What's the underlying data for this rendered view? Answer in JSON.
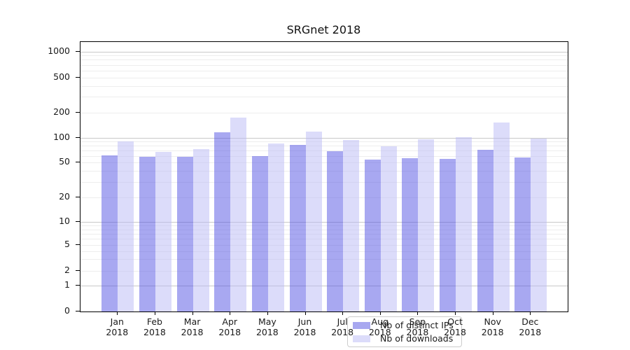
{
  "chart_data": {
    "type": "bar",
    "title": "SRGnet 2018",
    "categories": [
      "Jan",
      "Feb",
      "Mar",
      "Apr",
      "May",
      "Jun",
      "Jul",
      "Aug",
      "Sep",
      "Oct",
      "Nov",
      "Dec"
    ],
    "category_year_line": "2018",
    "series": [
      {
        "name": "Nb of distinct IPs",
        "legend_color": "#a8a8f0",
        "bar_fill": "rgba(77,77,226,0.49)",
        "values": [
          61,
          59,
          59,
          115,
          60,
          81,
          68,
          54,
          56,
          55,
          71,
          57
        ]
      },
      {
        "name": "Nb of downloads",
        "legend_color": "#dcdcfa",
        "bar_fill": "rgba(184,184,245,0.49)",
        "values": [
          90,
          67,
          72,
          174,
          85,
          117,
          93,
          78,
          96,
          101,
          150,
          97
        ]
      }
    ],
    "y_axis": {
      "scale": "symlog",
      "tick_labels": [
        "1000",
        "500",
        "200",
        "100",
        "50",
        "20",
        "10",
        "5",
        "2",
        "1",
        "0"
      ],
      "tick_values": [
        1000,
        500,
        200,
        100,
        50,
        20,
        10,
        5,
        2,
        1,
        0
      ],
      "major_gridline_values": [
        1,
        10,
        100,
        1000
      ],
      "minor_gridline_values": [
        2,
        3,
        4,
        5,
        6,
        7,
        8,
        9,
        20,
        30,
        40,
        50,
        60,
        70,
        80,
        90,
        200,
        300,
        400,
        500,
        600,
        700,
        800,
        900
      ],
      "ylim": [
        0,
        1300
      ]
    },
    "legend": {
      "position": "lower center",
      "entries": [
        "Nb of distinct IPs",
        "Nb of downloads"
      ]
    },
    "grid": true
  }
}
